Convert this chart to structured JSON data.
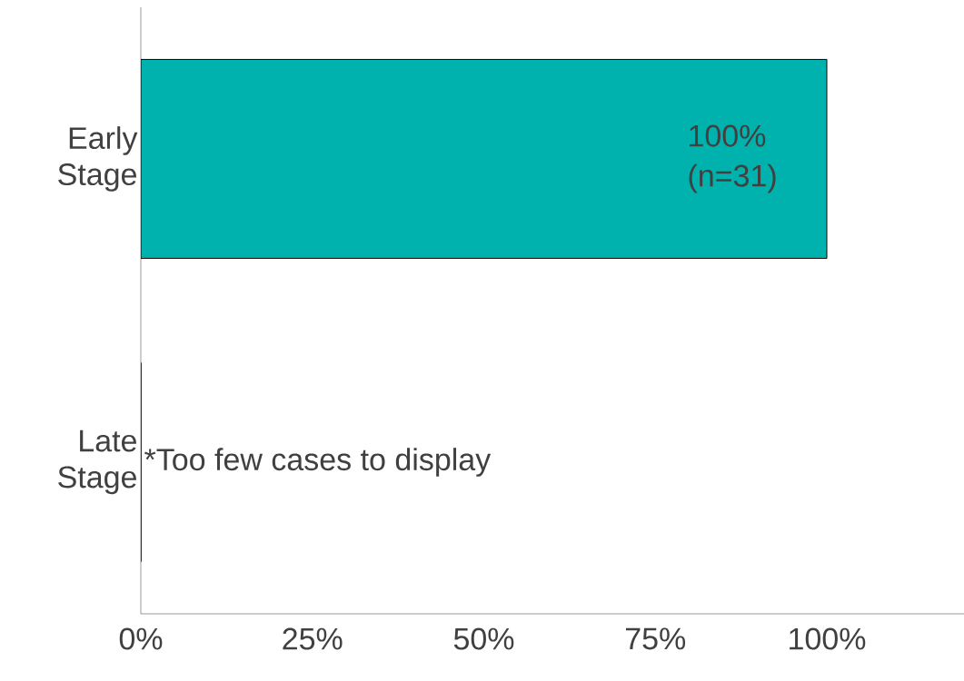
{
  "chart_data": {
    "type": "bar",
    "orientation": "horizontal",
    "categories": [
      "Early Stage",
      "Late Stage"
    ],
    "values": [
      100,
      0
    ],
    "color": "#00b2ae",
    "value_labels": [
      "100% (n=31)",
      "*Too few cases to display"
    ],
    "xlim": [
      0,
      120
    ],
    "xticks": [
      {
        "value": 0,
        "label": "0%"
      },
      {
        "value": 25,
        "label": "25%"
      },
      {
        "value": 50,
        "label": "50%"
      },
      {
        "value": 75,
        "label": "75%"
      },
      {
        "value": 100,
        "label": "100%"
      }
    ]
  }
}
